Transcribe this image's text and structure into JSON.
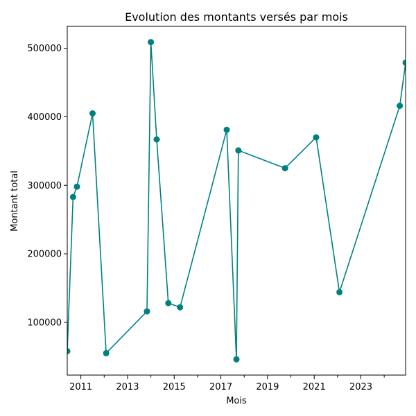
{
  "chart_data": {
    "type": "line",
    "title": "Evolution des montants versés par mois",
    "xlabel": "Mois",
    "ylabel": "Montant total",
    "x_ticks": [
      "2011",
      "2013",
      "2015",
      "2017",
      "2019",
      "2021",
      "2023"
    ],
    "y_ticks": [
      "100000",
      "200000",
      "300000",
      "400000",
      "500000"
    ],
    "xlim": [
      "2010-06",
      "2024-12"
    ],
    "ylim": [
      23000,
      532000
    ],
    "grid": false,
    "series": [
      {
        "color": "#008080",
        "marker": "circle",
        "points": [
          {
            "x": "2010-06",
            "y": 58000
          },
          {
            "x": "2010-09",
            "y": 283000
          },
          {
            "x": "2010-11",
            "y": 298000
          },
          {
            "x": "2011-07",
            "y": 405000
          },
          {
            "x": "2012-02",
            "y": 55000
          },
          {
            "x": "2013-11",
            "y": 116000
          },
          {
            "x": "2014-01",
            "y": 509000
          },
          {
            "x": "2014-04",
            "y": 367000
          },
          {
            "x": "2014-10",
            "y": 128000
          },
          {
            "x": "2015-04",
            "y": 122000
          },
          {
            "x": "2017-04",
            "y": 381000
          },
          {
            "x": "2017-09",
            "y": 46000
          },
          {
            "x": "2017-10",
            "y": 351000
          },
          {
            "x": "2019-10",
            "y": 325000
          },
          {
            "x": "2021-02",
            "y": 370000
          },
          {
            "x": "2022-02",
            "y": 144000
          },
          {
            "x": "2024-09",
            "y": 416000
          },
          {
            "x": "2024-12",
            "y": 479000
          }
        ]
      }
    ]
  }
}
